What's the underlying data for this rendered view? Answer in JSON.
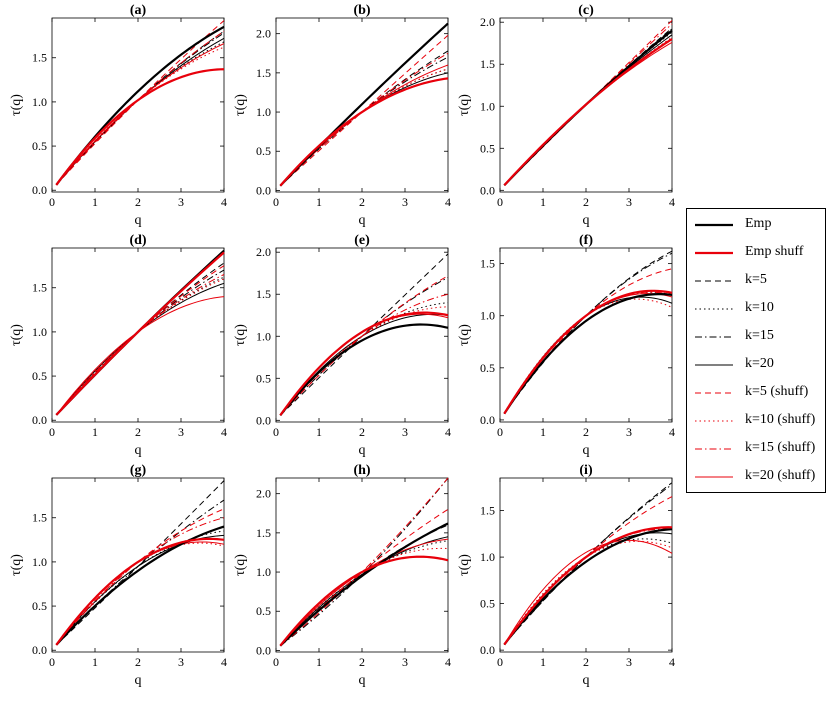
{
  "series_styles": [
    {
      "name": "Emp",
      "color": "#000000",
      "style": "solid",
      "weight": "thick"
    },
    {
      "name": "Emp shuff",
      "color": "#e8000b",
      "style": "solid",
      "weight": "thick"
    },
    {
      "name": "k=5",
      "color": "#000000",
      "style": "dashed",
      "weight": "thin"
    },
    {
      "name": "k=10",
      "color": "#000000",
      "style": "dotted",
      "weight": "thin"
    },
    {
      "name": "k=15",
      "color": "#000000",
      "style": "dashdot",
      "weight": "thin"
    },
    {
      "name": "k=20",
      "color": "#000000",
      "style": "solid",
      "weight": "thin"
    },
    {
      "name": "k=5 (shuff)",
      "color": "#e8000b",
      "style": "dashed",
      "weight": "thin"
    },
    {
      "name": "k=10 (shuff)",
      "color": "#e8000b",
      "style": "dotted",
      "weight": "thin"
    },
    {
      "name": "k=15 (shuff)",
      "color": "#e8000b",
      "style": "dashdot",
      "weight": "thin"
    },
    {
      "name": "k=20 (shuff)",
      "color": "#e8000b",
      "style": "solid",
      "weight": "thin"
    }
  ],
  "chart_data": [
    {
      "type": "line",
      "title": "(a)",
      "xlabel": "q",
      "ylabel": "τ(q)",
      "xlim": [
        0,
        4
      ],
      "ylim": [
        -0.02,
        1.95
      ],
      "xticks": [
        "0",
        "1",
        "2",
        "3",
        "4"
      ],
      "yticks": [
        "0.0",
        "0.5",
        "1.0",
        "1.5"
      ],
      "x": [
        0.1,
        2,
        4
      ],
      "series": [
        {
          "name": "Emp",
          "values": [
            0.06,
            1.12,
            1.85
          ]
        },
        {
          "name": "Emp shuff",
          "values": [
            0.06,
            1.02,
            1.37
          ]
        },
        {
          "name": "k=5",
          "values": [
            0.06,
            1.02,
            1.8
          ]
        },
        {
          "name": "k=10",
          "values": [
            0.06,
            1.02,
            1.68
          ]
        },
        {
          "name": "k=15",
          "values": [
            0.06,
            1.02,
            1.78
          ]
        },
        {
          "name": "k=20",
          "values": [
            0.06,
            1.02,
            1.72
          ]
        },
        {
          "name": "k=5 (shuff)",
          "values": [
            0.06,
            1.02,
            1.92
          ]
        },
        {
          "name": "k=10 (shuff)",
          "values": [
            0.06,
            1.02,
            1.62
          ]
        },
        {
          "name": "k=15 (shuff)",
          "values": [
            0.06,
            1.02,
            1.8
          ]
        },
        {
          "name": "k=20 (shuff)",
          "values": [
            0.06,
            1.02,
            1.66
          ]
        }
      ]
    },
    {
      "type": "line",
      "title": "(b)",
      "xlabel": "q",
      "ylabel": "τ(q)",
      "xlim": [
        0,
        4
      ],
      "ylim": [
        -0.02,
        2.2
      ],
      "xticks": [
        "0",
        "1",
        "2",
        "3",
        "4"
      ],
      "yticks": [
        "0.0",
        "0.5",
        "1.0",
        "1.5",
        "2.0"
      ],
      "x": [
        0.1,
        2,
        4
      ],
      "series": [
        {
          "name": "Emp",
          "values": [
            0.06,
            1.1,
            2.13
          ]
        },
        {
          "name": "Emp shuff",
          "values": [
            0.06,
            1.0,
            1.43
          ]
        },
        {
          "name": "k=5",
          "values": [
            0.06,
            1.0,
            1.78
          ]
        },
        {
          "name": "k=10",
          "values": [
            0.06,
            1.0,
            1.55
          ]
        },
        {
          "name": "k=15",
          "values": [
            0.06,
            1.0,
            1.7
          ]
        },
        {
          "name": "k=20",
          "values": [
            0.06,
            1.0,
            1.5
          ]
        },
        {
          "name": "k=5 (shuff)",
          "values": [
            0.06,
            1.0,
            1.98
          ]
        },
        {
          "name": "k=10 (shuff)",
          "values": [
            0.06,
            1.0,
            1.55
          ]
        },
        {
          "name": "k=15 (shuff)",
          "values": [
            0.06,
            1.0,
            1.75
          ]
        },
        {
          "name": "k=20 (shuff)",
          "values": [
            0.06,
            1.0,
            1.6
          ]
        }
      ]
    },
    {
      "type": "line",
      "title": "(c)",
      "xlabel": "q",
      "ylabel": "τ(q)",
      "xlim": [
        0,
        4
      ],
      "ylim": [
        -0.02,
        2.05
      ],
      "xticks": [
        "0",
        "1",
        "2",
        "3",
        "4"
      ],
      "yticks": [
        "0.0",
        "0.5",
        "1.0",
        "1.5",
        "2.0"
      ],
      "x": [
        0.1,
        2,
        4
      ],
      "series": [
        {
          "name": "Emp",
          "values": [
            0.06,
            1.02,
            1.9
          ]
        },
        {
          "name": "Emp shuff",
          "values": [
            0.06,
            1.02,
            1.8
          ]
        },
        {
          "name": "k=5",
          "values": [
            0.06,
            1.02,
            1.93
          ]
        },
        {
          "name": "k=10",
          "values": [
            0.06,
            1.02,
            1.88
          ]
        },
        {
          "name": "k=15",
          "values": [
            0.06,
            1.02,
            1.92
          ]
        },
        {
          "name": "k=20",
          "values": [
            0.06,
            1.02,
            1.85
          ]
        },
        {
          "name": "k=5 (shuff)",
          "values": [
            0.06,
            1.02,
            2.02
          ]
        },
        {
          "name": "k=10 (shuff)",
          "values": [
            0.06,
            1.02,
            1.82
          ]
        },
        {
          "name": "k=15 (shuff)",
          "values": [
            0.06,
            1.02,
            1.98
          ]
        },
        {
          "name": "k=20 (shuff)",
          "values": [
            0.06,
            1.02,
            1.76
          ]
        }
      ]
    },
    {
      "type": "line",
      "title": "(d)",
      "xlabel": "q",
      "ylabel": "τ(q)",
      "xlim": [
        0,
        4
      ],
      "ylim": [
        -0.02,
        1.95
      ],
      "xticks": [
        "0",
        "1",
        "2",
        "3",
        "4"
      ],
      "yticks": [
        "0.0",
        "0.5",
        "1.0",
        "1.5"
      ],
      "x": [
        0.1,
        2,
        4
      ],
      "series": [
        {
          "name": "Emp",
          "values": [
            0.06,
            1.0,
            1.92
          ]
        },
        {
          "name": "Emp shuff",
          "values": [
            0.06,
            1.0,
            1.9
          ]
        },
        {
          "name": "k=5",
          "values": [
            0.06,
            1.0,
            1.78
          ]
        },
        {
          "name": "k=10",
          "values": [
            0.06,
            1.0,
            1.62
          ]
        },
        {
          "name": "k=15",
          "values": [
            0.06,
            1.0,
            1.7
          ]
        },
        {
          "name": "k=20",
          "values": [
            0.06,
            1.0,
            1.55
          ]
        },
        {
          "name": "k=5 (shuff)",
          "values": [
            0.06,
            1.0,
            1.75
          ]
        },
        {
          "name": "k=10 (shuff)",
          "values": [
            0.06,
            1.0,
            1.6
          ]
        },
        {
          "name": "k=15 (shuff)",
          "values": [
            0.06,
            1.0,
            1.65
          ]
        },
        {
          "name": "k=20 (shuff)",
          "values": [
            0.06,
            1.0,
            1.4
          ]
        }
      ]
    },
    {
      "type": "line",
      "title": "(e)",
      "xlabel": "q",
      "ylabel": "τ(q)",
      "xlim": [
        0,
        4
      ],
      "ylim": [
        -0.02,
        2.05
      ],
      "xticks": [
        "0",
        "1",
        "2",
        "3",
        "4"
      ],
      "yticks": [
        "0.0",
        "0.5",
        "1.0",
        "1.5",
        "2.0"
      ],
      "x": [
        0.1,
        2,
        4
      ],
      "series": [
        {
          "name": "Emp",
          "values": [
            0.06,
            0.95,
            1.1
          ]
        },
        {
          "name": "Emp shuff",
          "values": [
            0.06,
            1.05,
            1.25
          ]
        },
        {
          "name": "k=5",
          "values": [
            0.06,
            1.0,
            1.98
          ]
        },
        {
          "name": "k=10",
          "values": [
            0.06,
            1.0,
            1.4
          ]
        },
        {
          "name": "k=15",
          "values": [
            0.06,
            1.0,
            1.7
          ]
        },
        {
          "name": "k=20",
          "values": [
            0.06,
            1.0,
            1.25
          ]
        },
        {
          "name": "k=5 (shuff)",
          "values": [
            0.06,
            1.0,
            1.72
          ]
        },
        {
          "name": "k=10 (shuff)",
          "values": [
            0.06,
            1.0,
            1.35
          ]
        },
        {
          "name": "k=15 (shuff)",
          "values": [
            0.06,
            1.0,
            1.5
          ]
        },
        {
          "name": "k=20 (shuff)",
          "values": [
            0.06,
            1.05,
            1.22
          ]
        }
      ]
    },
    {
      "type": "line",
      "title": "(f)",
      "xlabel": "q",
      "ylabel": "τ(q)",
      "xlim": [
        0,
        4
      ],
      "ylim": [
        -0.02,
        1.65
      ],
      "xticks": [
        "0",
        "1",
        "2",
        "3",
        "4"
      ],
      "yticks": [
        "0.0",
        "0.5",
        "1.0",
        "1.5"
      ],
      "x": [
        0.1,
        2,
        4
      ],
      "series": [
        {
          "name": "Emp",
          "values": [
            0.06,
            0.95,
            1.2
          ]
        },
        {
          "name": "Emp shuff",
          "values": [
            0.06,
            1.0,
            1.22
          ]
        },
        {
          "name": "k=5",
          "values": [
            0.06,
            1.0,
            1.62
          ]
        },
        {
          "name": "k=10",
          "values": [
            0.06,
            1.0,
            1.2
          ]
        },
        {
          "name": "k=15",
          "values": [
            0.06,
            1.0,
            1.6
          ]
        },
        {
          "name": "k=20",
          "values": [
            0.06,
            1.0,
            1.12
          ]
        },
        {
          "name": "k=5 (shuff)",
          "values": [
            0.06,
            1.0,
            1.45
          ]
        },
        {
          "name": "k=10 (shuff)",
          "values": [
            0.06,
            1.0,
            1.08
          ]
        },
        {
          "name": "k=15 (shuff)",
          "values": [
            0.06,
            1.0,
            1.2
          ]
        },
        {
          "name": "k=20 (shuff)",
          "values": [
            0.06,
            1.0,
            1.18
          ]
        }
      ]
    },
    {
      "type": "line",
      "title": "(g)",
      "xlabel": "q",
      "ylabel": "τ(q)",
      "xlim": [
        0,
        4
      ],
      "ylim": [
        -0.02,
        1.95
      ],
      "xticks": [
        "0",
        "1",
        "2",
        "3",
        "4"
      ],
      "yticks": [
        "0.0",
        "0.5",
        "1.0",
        "1.5"
      ],
      "x": [
        0.1,
        2,
        4
      ],
      "series": [
        {
          "name": "Emp",
          "values": [
            0.06,
            0.9,
            1.4
          ]
        },
        {
          "name": "Emp shuff",
          "values": [
            0.06,
            1.0,
            1.25
          ]
        },
        {
          "name": "k=5",
          "values": [
            0.06,
            0.95,
            1.92
          ]
        },
        {
          "name": "k=10",
          "values": [
            0.06,
            0.95,
            1.35
          ]
        },
        {
          "name": "k=15",
          "values": [
            0.06,
            0.95,
            1.7
          ]
        },
        {
          "name": "k=20",
          "values": [
            0.06,
            0.95,
            1.3
          ]
        },
        {
          "name": "k=5 (shuff)",
          "values": [
            0.06,
            1.0,
            1.6
          ]
        },
        {
          "name": "k=10 (shuff)",
          "values": [
            0.06,
            1.0,
            1.18
          ]
        },
        {
          "name": "k=15 (shuff)",
          "values": [
            0.06,
            1.0,
            1.5
          ]
        },
        {
          "name": "k=20 (shuff)",
          "values": [
            0.06,
            1.0,
            1.2
          ]
        }
      ]
    },
    {
      "type": "line",
      "title": "(h)",
      "xlabel": "q",
      "ylabel": "τ(q)",
      "xlim": [
        0,
        4
      ],
      "ylim": [
        -0.02,
        2.2
      ],
      "xticks": [
        "0",
        "1",
        "2",
        "3",
        "4"
      ],
      "yticks": [
        "0.0",
        "0.5",
        "1.0",
        "1.5",
        "2.0"
      ],
      "x": [
        0.1,
        2,
        4
      ],
      "series": [
        {
          "name": "Emp",
          "values": [
            0.06,
            0.95,
            1.62
          ]
        },
        {
          "name": "Emp shuff",
          "values": [
            0.06,
            1.0,
            1.15
          ]
        },
        {
          "name": "k=5",
          "values": [
            0.06,
            0.97,
            1.6
          ]
        },
        {
          "name": "k=10",
          "values": [
            0.06,
            0.97,
            1.4
          ]
        },
        {
          "name": "k=15",
          "values": [
            0.06,
            0.97,
            2.2
          ]
        },
        {
          "name": "k=20",
          "values": [
            0.06,
            0.97,
            1.45
          ]
        },
        {
          "name": "k=5 (shuff)",
          "values": [
            0.06,
            1.0,
            1.8
          ]
        },
        {
          "name": "k=10 (shuff)",
          "values": [
            0.06,
            1.0,
            1.3
          ]
        },
        {
          "name": "k=15 (shuff)",
          "values": [
            0.06,
            1.0,
            2.2
          ]
        },
        {
          "name": "k=20 (shuff)",
          "values": [
            0.06,
            1.0,
            1.42
          ]
        }
      ]
    },
    {
      "type": "line",
      "title": "(i)",
      "xlabel": "q",
      "ylabel": "τ(q)",
      "xlim": [
        0,
        4
      ],
      "ylim": [
        -0.02,
        1.85
      ],
      "xticks": [
        "0",
        "1",
        "2",
        "3",
        "4"
      ],
      "yticks": [
        "0.0",
        "0.5",
        "1.0",
        "1.5"
      ],
      "x": [
        0.1,
        2,
        4
      ],
      "series": [
        {
          "name": "Emp",
          "values": [
            0.06,
            0.95,
            1.3
          ]
        },
        {
          "name": "Emp shuff",
          "values": [
            0.06,
            1.0,
            1.32
          ]
        },
        {
          "name": "k=5",
          "values": [
            0.06,
            1.0,
            1.8
          ]
        },
        {
          "name": "k=10",
          "values": [
            0.06,
            1.0,
            1.15
          ]
        },
        {
          "name": "k=15",
          "values": [
            0.06,
            1.0,
            1.78
          ]
        },
        {
          "name": "k=20",
          "values": [
            0.06,
            1.0,
            1.25
          ]
        },
        {
          "name": "k=5 (shuff)",
          "values": [
            0.06,
            1.0,
            1.65
          ]
        },
        {
          "name": "k=10 (shuff)",
          "values": [
            0.06,
            1.0,
            1.1
          ]
        },
        {
          "name": "k=15 (shuff)",
          "values": [
            0.06,
            1.0,
            1.3
          ]
        },
        {
          "name": "k=20 (shuff)",
          "values": [
            0.06,
            1.05,
            1.04
          ]
        }
      ]
    }
  ]
}
